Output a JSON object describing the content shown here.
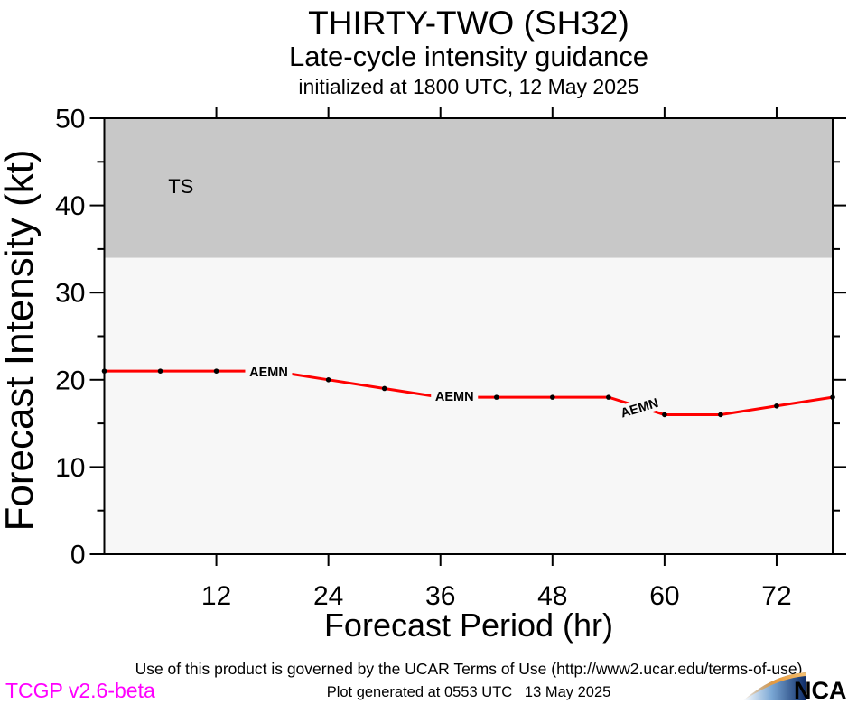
{
  "header": {
    "title": "THIRTY-TWO (SH32)",
    "subtitle": "Late-cycle intensity guidance",
    "init_line": "initialized at 1800 UTC, 12 May 2025"
  },
  "chart_data": {
    "type": "line",
    "title": "THIRTY-TWO (SH32) Late-cycle intensity guidance",
    "xlabel": "Forecast Period (hr)",
    "ylabel": "Forecast Intensity (kt)",
    "xlim": [
      0,
      78
    ],
    "ylim": [
      0,
      50
    ],
    "x_ticks": [
      12,
      24,
      36,
      48,
      60,
      72
    ],
    "y_ticks": [
      0,
      10,
      20,
      30,
      40,
      50
    ],
    "y_minor_ticks": [
      5,
      15,
      25,
      35,
      45
    ],
    "grid": false,
    "plot_bg": "#f7f7f7",
    "frame_color": "#000000",
    "bands": [
      {
        "label": "TS",
        "from": 34,
        "to": 50,
        "color": "#c8c8c8",
        "label_color": "#ffffff",
        "label_x_hr": 8.2,
        "label_y_kt": 42.2
      }
    ],
    "series": [
      {
        "name": "AEMN",
        "color": "#ff0000",
        "x": [
          0,
          6,
          12,
          18,
          24,
          30,
          36,
          42,
          48,
          54,
          60,
          66,
          72,
          78
        ],
        "values": [
          21,
          21,
          21,
          21,
          20,
          19,
          18,
          18,
          18,
          18,
          16,
          16,
          17,
          18
        ],
        "marker_color": "#000000",
        "labels": [
          {
            "text": "AEMN",
            "x_hr": 17.6,
            "y_kt": 20.9,
            "rotation": 0
          },
          {
            "text": "AEMN",
            "x_hr": 37.5,
            "y_kt": 18.1,
            "rotation": 0
          },
          {
            "text": "AEMN",
            "x_hr": 57.3,
            "y_kt": 16.8,
            "rotation": -17
          }
        ]
      }
    ]
  },
  "footer": {
    "terms": "Use of this product is governed by the UCAR Terms of Use (http://www2.ucar.edu/terms-of-use)",
    "version": "TCGP v2.6-beta",
    "generated": "Plot generated at 0553 UTC   13 May 2025",
    "logo_text": "NCAR"
  },
  "colors": {
    "accent_line": "#ff0000",
    "band_gray": "#c8c8c8",
    "version_magenta": "#ff00ff",
    "ncar_navy": "#0f2c69",
    "ncar_orange": "#e89a3c"
  }
}
